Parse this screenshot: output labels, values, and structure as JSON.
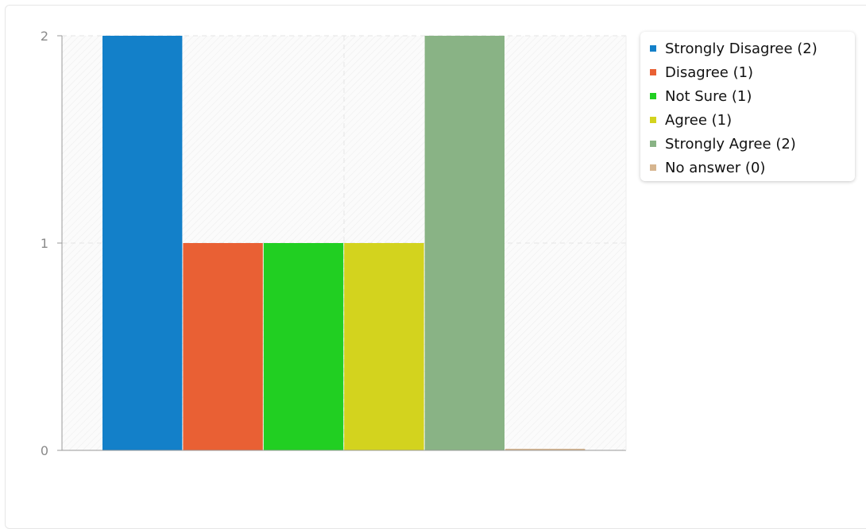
{
  "chart_data": {
    "type": "bar",
    "title": "",
    "xlabel": "",
    "ylabel": "",
    "ylim": [
      0,
      2
    ],
    "yticks": [
      0,
      1,
      2
    ],
    "grid": true,
    "legend_position": "top-right",
    "categories": [
      "Strongly Disagree",
      "Disagree",
      "Not Sure",
      "Agree",
      "Strongly Agree",
      "No answer"
    ],
    "values": [
      2,
      1,
      1,
      1,
      2,
      0
    ],
    "colors": [
      "#1380c9",
      "#e96034",
      "#21cf22",
      "#d3d31e",
      "#89b385",
      "#d6b58f"
    ],
    "legend": [
      "Strongly Disagree (2)",
      "Disagree (1)",
      "Not Sure (1)",
      "Agree (1)",
      "Strongly Agree (2)",
      "No answer (0)"
    ]
  }
}
